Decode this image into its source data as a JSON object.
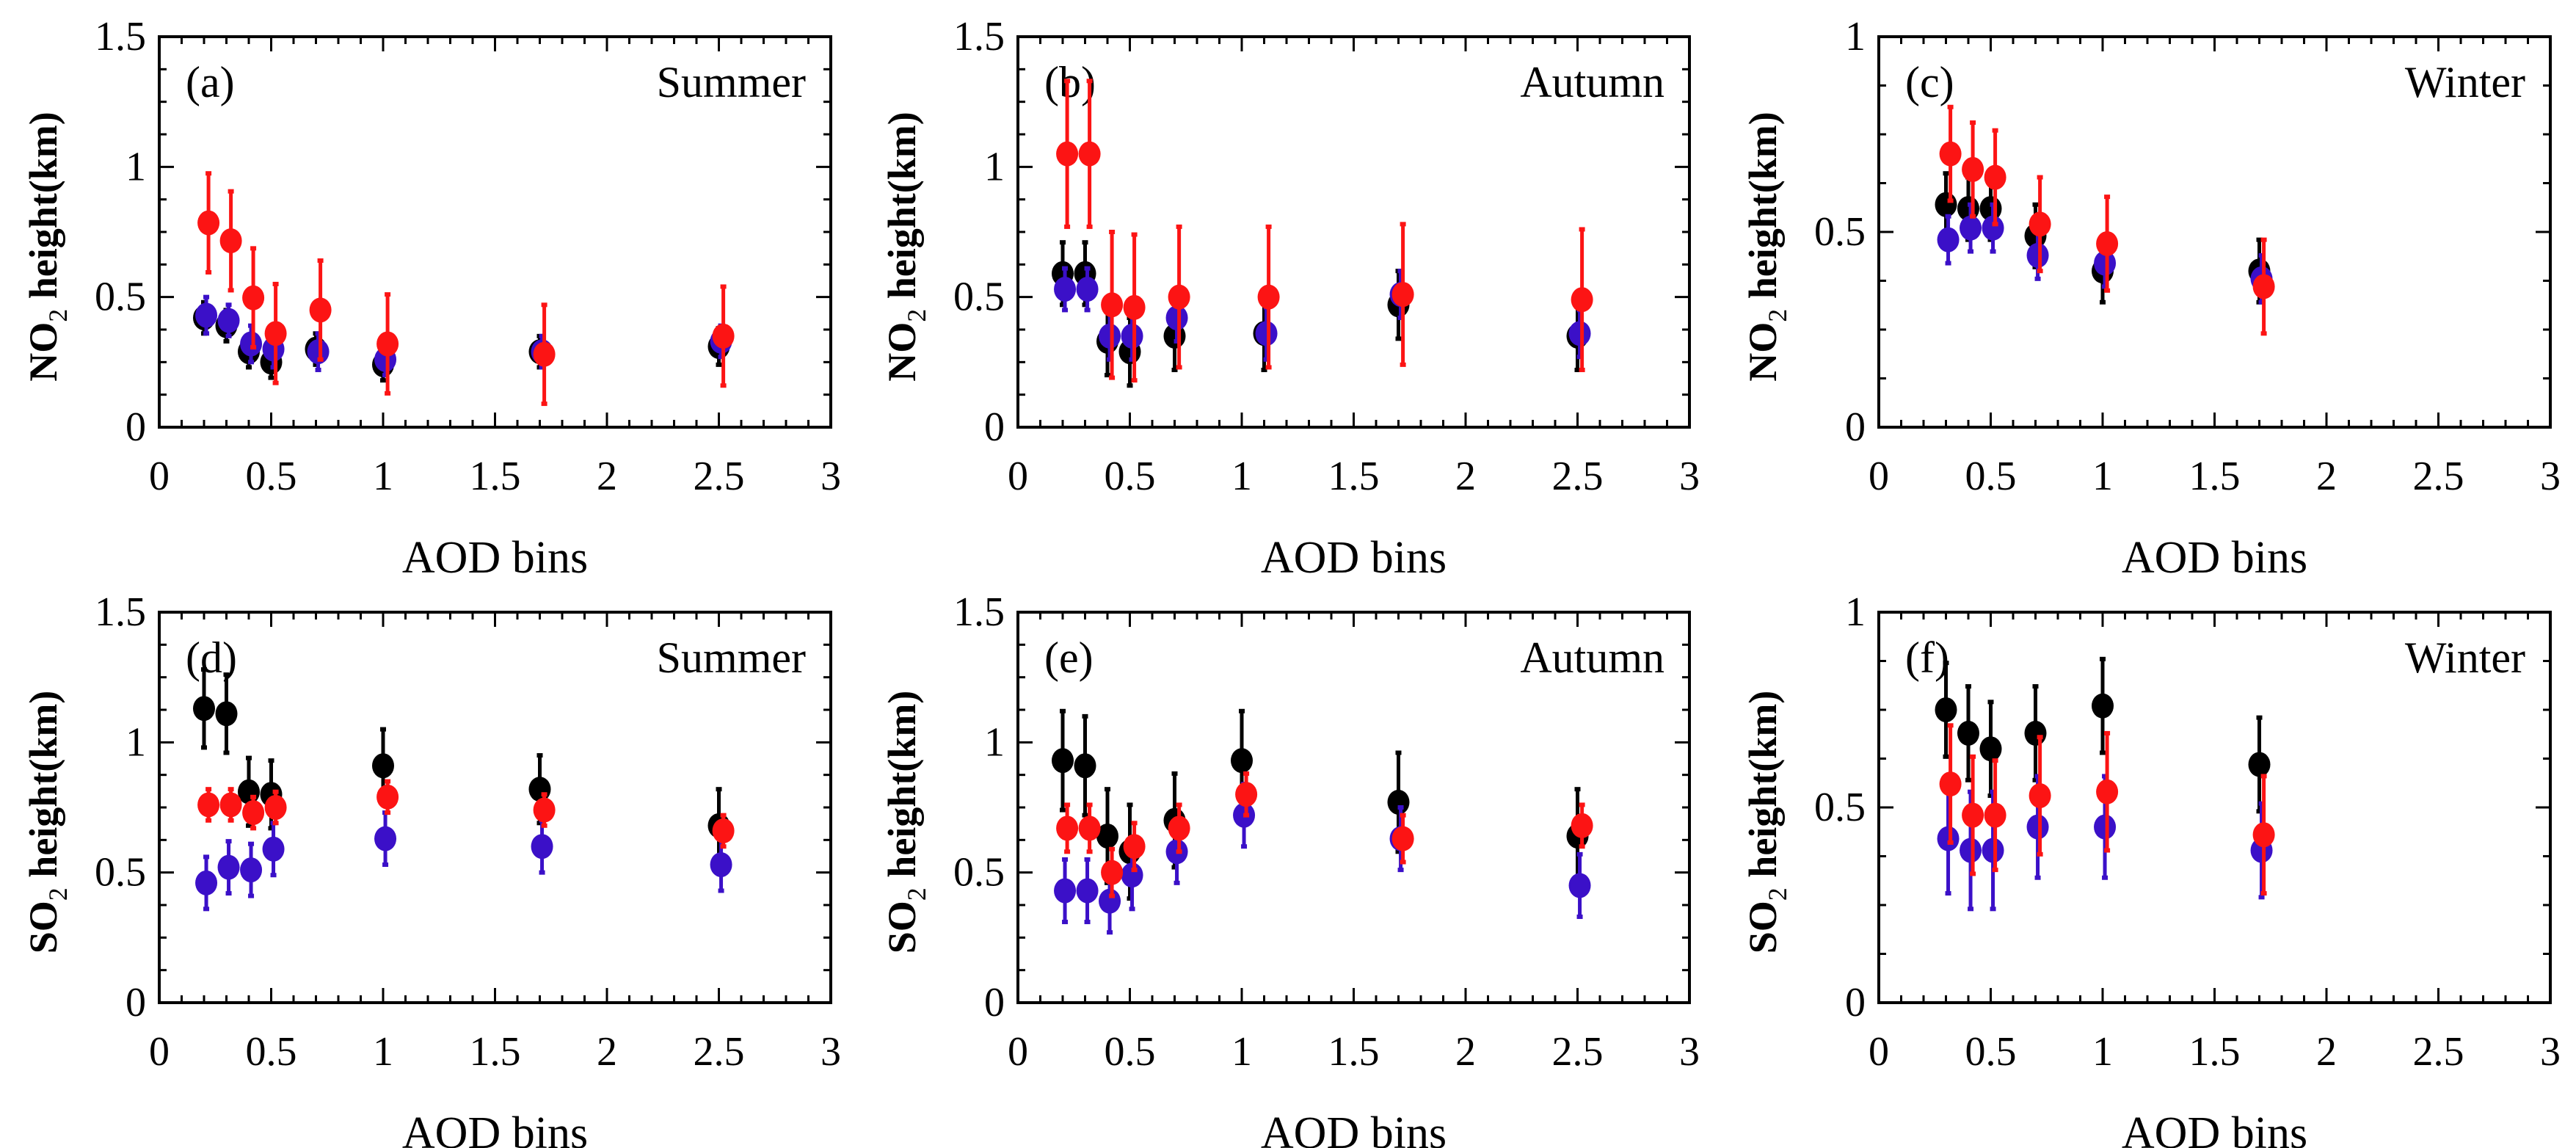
{
  "colors": {
    "black": "#000000",
    "blue": "#3b10c8",
    "red": "#fc1414"
  },
  "chart_data": [
    {
      "type": "scatter",
      "panel_label": "(a)",
      "season": "Summer",
      "ylabel": {
        "species": "NO",
        "sub": "2",
        "rest": " height(km)"
      },
      "xlabel": "AOD bins",
      "xlim": [
        0,
        3
      ],
      "ylim": [
        0,
        1.5
      ],
      "xticks": [
        "0",
        "0.5",
        "1",
        "1.5",
        "2",
        "2.5",
        "3"
      ],
      "yticks": [
        "0",
        "0.5",
        "1",
        "1.5"
      ],
      "series": [
        {
          "name": "black",
          "x": [
            0.2,
            0.3,
            0.4,
            0.5,
            0.7,
            1.0,
            1.7,
            2.5
          ],
          "y": [
            0.42,
            0.39,
            0.29,
            0.25,
            0.3,
            0.24,
            0.29,
            0.31
          ],
          "err": [
            0.06,
            0.06,
            0.06,
            0.06,
            0.06,
            0.06,
            0.06,
            0.07
          ]
        },
        {
          "name": "blue",
          "x": [
            0.21,
            0.31,
            0.41,
            0.51,
            0.71,
            1.01,
            1.71,
            2.51
          ],
          "y": [
            0.43,
            0.41,
            0.32,
            0.3,
            0.29,
            0.26,
            0.29,
            0.33
          ],
          "err": [
            0.07,
            0.06,
            0.07,
            0.07,
            0.07,
            0.06,
            0.06,
            0.06
          ]
        },
        {
          "name": "red",
          "x": [
            0.22,
            0.32,
            0.42,
            0.52,
            0.72,
            1.02,
            1.72,
            2.52
          ],
          "y": [
            0.785,
            0.716,
            0.497,
            0.36,
            0.45,
            0.32,
            0.28,
            0.35
          ],
          "err": [
            0.19,
            0.19,
            0.19,
            0.19,
            0.19,
            0.19,
            0.19,
            0.19
          ]
        }
      ]
    },
    {
      "type": "scatter",
      "panel_label": "(b)",
      "season": "Autumn",
      "ylabel": {
        "species": "NO",
        "sub": "2",
        "rest": " height(km)"
      },
      "xlabel": "AOD bins",
      "xlim": [
        0,
        3
      ],
      "ylim": [
        0,
        1.5
      ],
      "xticks": [
        "0",
        "0.5",
        "1",
        "1.5",
        "2",
        "2.5",
        "3"
      ],
      "yticks": [
        "0",
        "0.5",
        "1",
        "1.5"
      ],
      "series": [
        {
          "name": "black",
          "x": [
            0.2,
            0.3,
            0.4,
            0.5,
            0.7,
            1.1,
            1.7,
            2.5
          ],
          "y": [
            0.59,
            0.59,
            0.33,
            0.29,
            0.35,
            0.36,
            0.47,
            0.35
          ],
          "err": [
            0.12,
            0.12,
            0.13,
            0.13,
            0.13,
            0.14,
            0.13,
            0.13
          ]
        },
        {
          "name": "blue",
          "x": [
            0.21,
            0.31,
            0.41,
            0.51,
            0.71,
            1.11,
            1.71,
            2.51
          ],
          "y": [
            0.53,
            0.53,
            0.35,
            0.35,
            0.42,
            0.36,
            0.51,
            0.36
          ],
          "err": [
            0.08,
            0.08,
            0.09,
            0.09,
            0.09,
            0.1,
            0.09,
            0.09
          ]
        },
        {
          "name": "red",
          "x": [
            0.22,
            0.32,
            0.42,
            0.52,
            0.72,
            1.12,
            1.72,
            2.52
          ],
          "y": [
            1.05,
            1.05,
            0.47,
            0.46,
            0.5,
            0.5,
            0.51,
            0.49
          ],
          "err": [
            0.28,
            0.28,
            0.28,
            0.28,
            0.27,
            0.27,
            0.27,
            0.27
          ]
        }
      ]
    },
    {
      "type": "scatter",
      "panel_label": "(c)",
      "season": "Winter",
      "ylabel": {
        "species": "NO",
        "sub": "2",
        "rest": " height(km)"
      },
      "xlabel": "AOD bins",
      "xlim": [
        0,
        3
      ],
      "ylim": [
        0,
        1
      ],
      "xticks": [
        "0",
        "0.5",
        "1",
        "1.5",
        "2",
        "2.5",
        "3"
      ],
      "yticks": [
        "0",
        "0.5",
        "1"
      ],
      "series": [
        {
          "name": "black",
          "x": [
            0.3,
            0.4,
            0.5,
            0.7,
            1.0,
            1.7
          ],
          "y": [
            0.57,
            0.56,
            0.56,
            0.49,
            0.4,
            0.4
          ],
          "err": [
            0.08,
            0.08,
            0.08,
            0.08,
            0.08,
            0.08
          ]
        },
        {
          "name": "blue",
          "x": [
            0.31,
            0.41,
            0.51,
            0.71,
            1.01,
            1.71
          ],
          "y": [
            0.48,
            0.51,
            0.51,
            0.44,
            0.42,
            0.38
          ],
          "err": [
            0.06,
            0.06,
            0.06,
            0.06,
            0.06,
            0.06
          ]
        },
        {
          "name": "red",
          "x": [
            0.32,
            0.42,
            0.52,
            0.72,
            1.02,
            1.72
          ],
          "y": [
            0.7,
            0.66,
            0.64,
            0.52,
            0.47,
            0.36
          ],
          "err": [
            0.12,
            0.12,
            0.12,
            0.12,
            0.12,
            0.12
          ]
        }
      ]
    },
    {
      "type": "scatter",
      "panel_label": "(d)",
      "season": "Summer",
      "ylabel": {
        "species": "SO",
        "sub": "2",
        "rest": " height(km)"
      },
      "xlabel": "AOD bins",
      "xlim": [
        0,
        3
      ],
      "ylim": [
        0,
        1.5
      ],
      "xticks": [
        "0",
        "0.5",
        "1",
        "1.5",
        "2",
        "2.5",
        "3"
      ],
      "yticks": [
        "0",
        "0.5",
        "1",
        "1.5"
      ],
      "series": [
        {
          "name": "black",
          "x": [
            0.2,
            0.3,
            0.4,
            0.5,
            1.0,
            1.7,
            2.5
          ],
          "y": [
            1.13,
            1.11,
            0.81,
            0.8,
            0.91,
            0.82,
            0.68
          ],
          "err": [
            0.15,
            0.15,
            0.13,
            0.13,
            0.14,
            0.13,
            0.14
          ]
        },
        {
          "name": "blue",
          "x": [
            0.21,
            0.31,
            0.41,
            0.51,
            1.01,
            1.71,
            2.51
          ],
          "y": [
            0.46,
            0.52,
            0.51,
            0.59,
            0.63,
            0.6,
            0.53
          ],
          "err": [
            0.1,
            0.1,
            0.1,
            0.1,
            0.1,
            0.1,
            0.1
          ]
        },
        {
          "name": "red",
          "x": [
            0.22,
            0.32,
            0.42,
            0.52,
            1.02,
            1.72,
            2.52
          ],
          "y": [
            0.76,
            0.76,
            0.73,
            0.75,
            0.79,
            0.74,
            0.66
          ],
          "err": [
            0.06,
            0.06,
            0.06,
            0.06,
            0.06,
            0.06,
            0.06
          ]
        }
      ]
    },
    {
      "type": "scatter",
      "panel_label": "(e)",
      "season": "Autumn",
      "ylabel": {
        "species": "SO",
        "sub": "2",
        "rest": " height(km)"
      },
      "xlabel": "AOD bins",
      "xlim": [
        0,
        3
      ],
      "ylim": [
        0,
        1.5
      ],
      "xticks": [
        "0",
        "0.5",
        "1",
        "1.5",
        "2",
        "2.5",
        "3"
      ],
      "yticks": [
        "0",
        "0.5",
        "1",
        "1.5"
      ],
      "series": [
        {
          "name": "black",
          "x": [
            0.2,
            0.3,
            0.4,
            0.5,
            0.7,
            1.0,
            1.7,
            2.5
          ],
          "y": [
            0.93,
            0.91,
            0.64,
            0.58,
            0.7,
            0.93,
            0.77,
            0.64
          ],
          "err": [
            0.19,
            0.19,
            0.18,
            0.18,
            0.18,
            0.19,
            0.19,
            0.18
          ]
        },
        {
          "name": "blue",
          "x": [
            0.21,
            0.31,
            0.41,
            0.51,
            0.71,
            1.01,
            1.71,
            2.51
          ],
          "y": [
            0.43,
            0.43,
            0.39,
            0.49,
            0.58,
            0.72,
            0.63,
            0.45
          ],
          "err": [
            0.12,
            0.12,
            0.12,
            0.13,
            0.12,
            0.12,
            0.12,
            0.12
          ]
        },
        {
          "name": "red",
          "x": [
            0.22,
            0.32,
            0.42,
            0.52,
            0.72,
            1.02,
            1.72,
            2.52
          ],
          "y": [
            0.67,
            0.67,
            0.5,
            0.6,
            0.67,
            0.8,
            0.63,
            0.68
          ],
          "err": [
            0.09,
            0.09,
            0.09,
            0.09,
            0.09,
            0.08,
            0.09,
            0.08
          ]
        }
      ]
    },
    {
      "type": "scatter",
      "panel_label": "(f)",
      "season": "Winter",
      "ylabel": {
        "species": "SO",
        "sub": "2",
        "rest": " height(km)"
      },
      "xlabel": "AOD bins",
      "xlim": [
        0,
        3
      ],
      "ylim": [
        0,
        1
      ],
      "xticks": [
        "0",
        "0.5",
        "1",
        "1.5",
        "2",
        "2.5",
        "3"
      ],
      "yticks": [
        "0",
        "0.5",
        "1"
      ],
      "series": [
        {
          "name": "black",
          "x": [
            0.3,
            0.4,
            0.5,
            0.7,
            1.0,
            1.7
          ],
          "y": [
            0.75,
            0.69,
            0.65,
            0.69,
            0.76,
            0.61
          ],
          "err": [
            0.12,
            0.12,
            0.12,
            0.12,
            0.12,
            0.12
          ]
        },
        {
          "name": "blue",
          "x": [
            0.31,
            0.41,
            0.51,
            0.71,
            1.01,
            1.71
          ],
          "y": [
            0.42,
            0.39,
            0.39,
            0.45,
            0.45,
            0.39
          ],
          "err": [
            0.14,
            0.15,
            0.15,
            0.13,
            0.13,
            0.12
          ]
        },
        {
          "name": "red",
          "x": [
            0.32,
            0.42,
            0.52,
            0.72,
            1.02,
            1.72
          ],
          "y": [
            0.56,
            0.48,
            0.48,
            0.53,
            0.54,
            0.43
          ],
          "err": [
            0.15,
            0.15,
            0.14,
            0.15,
            0.15,
            0.15
          ]
        }
      ]
    }
  ]
}
